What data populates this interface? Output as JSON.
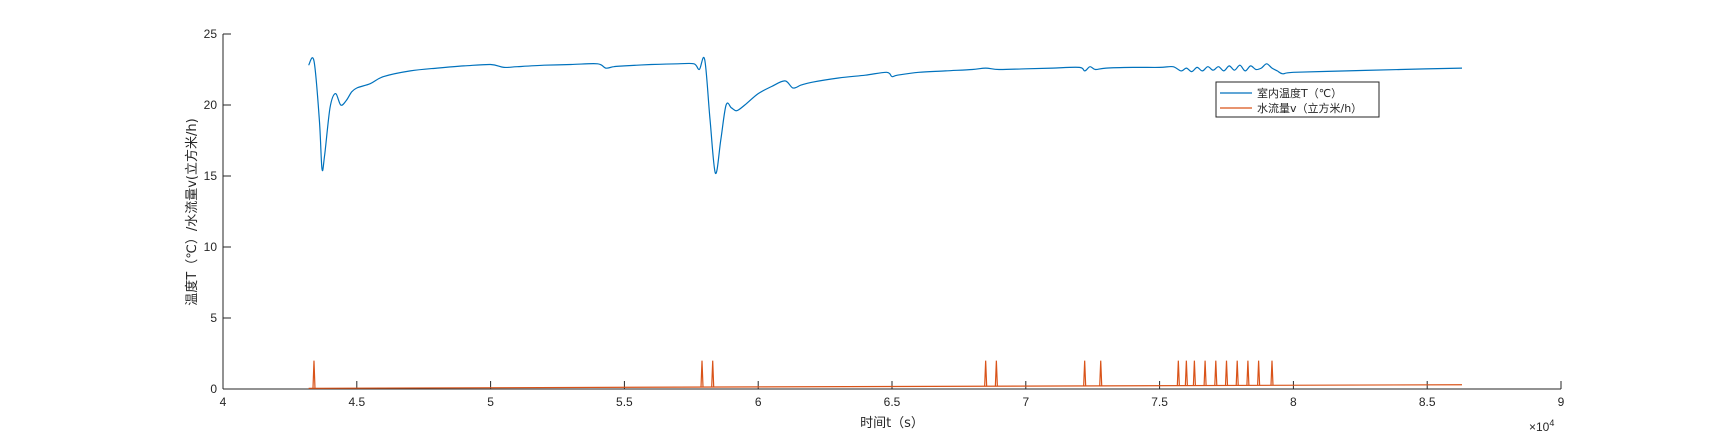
{
  "chart_data": {
    "type": "line",
    "xlabel": "时间t（s）",
    "ylabel": "温度T（℃）/水流量v(立方米/h)",
    "xlim": [
      40000,
      90000
    ],
    "ylim": [
      0,
      25
    ],
    "x_exponent": "×10^4",
    "x_exponent_base": "×10",
    "x_exponent_power": "4",
    "x_tick_labels": [
      "4",
      "4.5",
      "5",
      "5.5",
      "6",
      "6.5",
      "7",
      "7.5",
      "8",
      "8.5",
      "9"
    ],
    "x_ticks": [
      40000,
      45000,
      50000,
      55000,
      60000,
      65000,
      70000,
      75000,
      80000,
      85000,
      90000
    ],
    "y_ticks": [
      0,
      5,
      10,
      15,
      20,
      25
    ],
    "y_tick_labels": [
      "0",
      "5",
      "10",
      "15",
      "20",
      "25"
    ],
    "grid": false,
    "legend_position": "top-right",
    "series": [
      {
        "name": "室内温度T（℃）",
        "color": "#0072BD",
        "x": [
          43200,
          43400,
          43600,
          43700,
          43800,
          44000,
          44200,
          44400,
          44600,
          44800,
          45000,
          45500,
          46000,
          47000,
          48000,
          49000,
          50000,
          50500,
          51000,
          52000,
          53000,
          54000,
          54300,
          54600,
          55000,
          56000,
          57000,
          57600,
          57800,
          58000,
          58200,
          58400,
          58600,
          58800,
          59000,
          59200,
          59500,
          60000,
          60500,
          61000,
          61300,
          61600,
          62000,
          63000,
          64000,
          64800,
          65000,
          65200,
          66000,
          67000,
          68000,
          68500,
          69000,
          70000,
          71000,
          72000,
          72200,
          72400,
          72600,
          73000,
          74000,
          75000,
          75500,
          75800,
          76000,
          76200,
          76400,
          76600,
          76800,
          77000,
          77200,
          77400,
          77600,
          77800,
          78000,
          78200,
          78400,
          78600,
          78800,
          79000,
          79200,
          79400,
          79600,
          80000,
          82000,
          84000,
          86300
        ],
        "values": [
          22.8,
          23.1,
          19.0,
          15.5,
          16.5,
          19.8,
          20.8,
          20.0,
          20.3,
          20.9,
          21.2,
          21.5,
          22.0,
          22.4,
          22.6,
          22.75,
          22.85,
          22.65,
          22.7,
          22.8,
          22.85,
          22.9,
          22.6,
          22.7,
          22.75,
          22.85,
          22.9,
          22.9,
          22.5,
          23.2,
          19.0,
          15.2,
          17.5,
          20.0,
          19.8,
          19.6,
          20.0,
          20.8,
          21.3,
          21.7,
          21.2,
          21.4,
          21.6,
          21.9,
          22.1,
          22.3,
          22.0,
          22.1,
          22.3,
          22.4,
          22.5,
          22.6,
          22.5,
          22.55,
          22.6,
          22.65,
          22.4,
          22.7,
          22.5,
          22.6,
          22.65,
          22.65,
          22.7,
          22.4,
          22.6,
          22.35,
          22.65,
          22.4,
          22.7,
          22.45,
          22.7,
          22.4,
          22.75,
          22.45,
          22.8,
          22.4,
          22.75,
          22.5,
          22.6,
          22.9,
          22.6,
          22.4,
          22.2,
          22.3,
          22.4,
          22.5,
          22.6
        ]
      },
      {
        "name": "水流量v（立方米/h）",
        "color": "#D95319",
        "spikes_x": [
          43400,
          57900,
          58300,
          68500,
          68900,
          72200,
          72800,
          75700,
          76000,
          76300,
          76700,
          77100,
          77500,
          77900,
          78300,
          78700,
          79200
        ],
        "spike_value": 2,
        "baseline_x": [
          43200,
          86300
        ],
        "baseline_values": [
          0.05,
          0.3
        ]
      }
    ]
  }
}
